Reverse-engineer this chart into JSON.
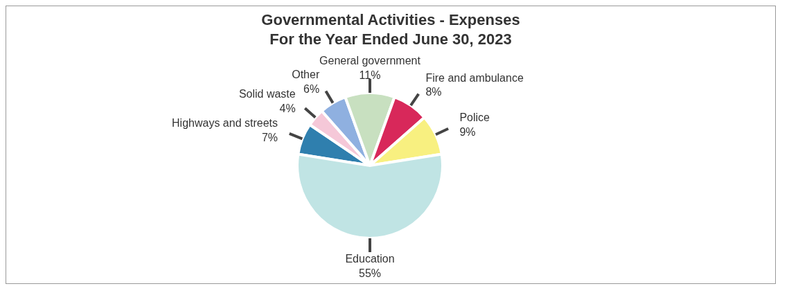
{
  "chart_data": {
    "type": "pie",
    "title": "Governmental Activities - Expenses",
    "subtitle": "For the Year Ended June 30, 2023",
    "categories": [
      "Highways and streets",
      "Solid waste",
      "Other",
      "General government",
      "Fire and ambulance",
      "Police",
      "Education"
    ],
    "values": [
      7,
      4,
      6,
      11,
      8,
      9,
      55
    ],
    "colors": [
      "#2f7fae",
      "#f5c8d8",
      "#8fb0e0",
      "#c8e0c0",
      "#d8285a",
      "#f8f080",
      "#c0e4e4"
    ],
    "value_labels": [
      "7%",
      "4%",
      "6%",
      "11%",
      "8%",
      "9%",
      "55%"
    ],
    "legend": false
  }
}
